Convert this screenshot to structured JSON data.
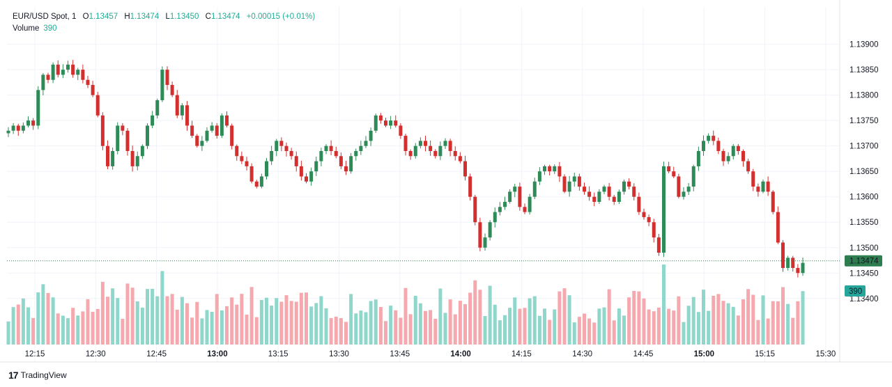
{
  "legend": {
    "symbol": "EUR/USD Spot, 1",
    "open_label": "O",
    "open": "1.13457",
    "high_label": "H",
    "high": "1.13474",
    "low_label": "L",
    "low": "1.13450",
    "close_label": "C",
    "close": "1.13474",
    "change": "+0.00015 (+0.01%)",
    "volume_label": "Volume",
    "volume_value": "390"
  },
  "branding": {
    "logo_text": "TradingView",
    "logo_mark": "17"
  },
  "colors": {
    "up": "#26a69a",
    "down": "#ef5350",
    "up_body": "#2e8b57",
    "down_body": "#d32f2f",
    "vol_up": "#8fd6cb",
    "vol_down": "#f5a8ad",
    "grid": "#f0f3fa",
    "price_tag": "#2e7d4f",
    "vol_tag": "#26a69a"
  },
  "chart_data": {
    "type": "candlestick",
    "title": "EUR/USD Spot, 1",
    "price_axis": {
      "ticks": [
        "1.13900",
        "1.13850",
        "1.13800",
        "1.13750",
        "1.13700",
        "1.13650",
        "1.13600",
        "1.13550",
        "1.13500",
        "1.13450",
        "1.13400"
      ],
      "ylim": [
        1.1336,
        1.1392
      ]
    },
    "time_axis": {
      "ticks": [
        {
          "label": "12:15",
          "bold": false
        },
        {
          "label": "12:30",
          "bold": false
        },
        {
          "label": "12:45",
          "bold": false
        },
        {
          "label": "13:00",
          "bold": true
        },
        {
          "label": "13:15",
          "bold": false
        },
        {
          "label": "13:30",
          "bold": false
        },
        {
          "label": "13:45",
          "bold": false
        },
        {
          "label": "14:00",
          "bold": true
        },
        {
          "label": "14:15",
          "bold": false
        },
        {
          "label": "14:30",
          "bold": false
        },
        {
          "label": "14:45",
          "bold": false
        },
        {
          "label": "15:00",
          "bold": true
        },
        {
          "label": "15:15",
          "bold": false
        },
        {
          "label": "15:30",
          "bold": false
        }
      ]
    },
    "last_price_label": "1.13474",
    "last_volume_label": "390",
    "closes": [
      1.1373,
      1.1374,
      1.1373,
      1.1374,
      1.1375,
      1.1374,
      1.1381,
      1.1384,
      1.1383,
      1.1386,
      1.1384,
      1.1385,
      1.1386,
      1.1384,
      1.1385,
      1.1383,
      1.1382,
      1.138,
      1.1376,
      1.137,
      1.1366,
      1.1369,
      1.1374,
      1.1373,
      1.1369,
      1.1366,
      1.1368,
      1.137,
      1.1374,
      1.1376,
      1.1379,
      1.1385,
      1.1382,
      1.138,
      1.1376,
      1.1378,
      1.1374,
      1.1372,
      1.137,
      1.1371,
      1.1373,
      1.1374,
      1.1372,
      1.1376,
      1.1374,
      1.137,
      1.1368,
      1.1367,
      1.1366,
      1.1363,
      1.1362,
      1.1364,
      1.1367,
      1.1369,
      1.1371,
      1.137,
      1.1369,
      1.1368,
      1.1366,
      1.1364,
      1.1363,
      1.1365,
      1.1367,
      1.1369,
      1.137,
      1.1369,
      1.1368,
      1.1366,
      1.1365,
      1.1368,
      1.1369,
      1.137,
      1.1371,
      1.1373,
      1.1376,
      1.1375,
      1.1374,
      1.1375,
      1.1374,
      1.1372,
      1.1369,
      1.1368,
      1.137,
      1.1371,
      1.137,
      1.1369,
      1.1368,
      1.137,
      1.1371,
      1.1369,
      1.1368,
      1.1367,
      1.1364,
      1.136,
      1.1355,
      1.135,
      1.1352,
      1.1355,
      1.1357,
      1.1358,
      1.1359,
      1.1361,
      1.1362,
      1.1358,
      1.1357,
      1.136,
      1.1363,
      1.1365,
      1.1366,
      1.1365,
      1.1366,
      1.1364,
      1.1361,
      1.1363,
      1.1364,
      1.1362,
      1.1361,
      1.136,
      1.1359,
      1.1361,
      1.1362,
      1.136,
      1.1359,
      1.1361,
      1.1363,
      1.1362,
      1.136,
      1.1357,
      1.1356,
      1.1355,
      1.1352,
      1.1349,
      1.1366,
      1.1365,
      1.1364,
      1.136,
      1.1361,
      1.1362,
      1.1366,
      1.1369,
      1.1371,
      1.1372,
      1.1371,
      1.1369,
      1.1367,
      1.1368,
      1.137,
      1.1369,
      1.1367,
      1.1365,
      1.1362,
      1.1361,
      1.1363,
      1.1361,
      1.1357,
      1.1351,
      1.1346,
      1.1348,
      1.1346,
      1.1345,
      1.1347
    ],
    "volume_up": [
      "increasing candle volume"
    ],
    "volume_max": 100
  }
}
